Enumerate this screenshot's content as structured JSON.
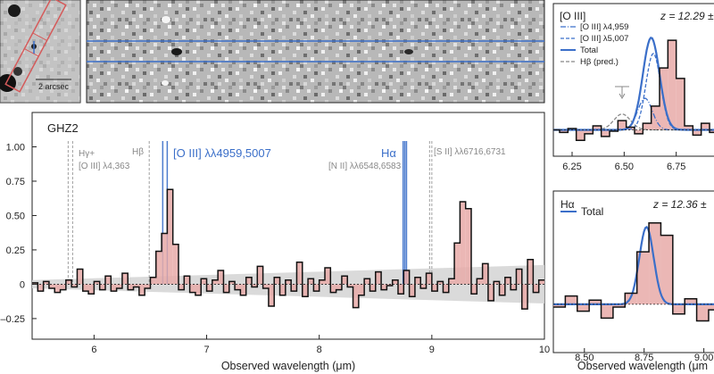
{
  "image_panels": {
    "scale_label": "2 arcsec"
  },
  "chart_data": [
    {
      "type": "line",
      "panel": "main-spectrum",
      "title": "GHZ2",
      "xlabel": "Observed wavelength (μm)",
      "ylabel": "",
      "xlim": [
        5.45,
        10.0
      ],
      "ylim": [
        -0.4,
        1.25
      ],
      "x_ticks": [
        6,
        7,
        8,
        9,
        10
      ],
      "y_ticks": [
        1.0,
        0.75,
        0.5,
        0.25,
        0,
        -0.25
      ],
      "y_tick_labels": [
        "1.00",
        "0.75",
        "0.50",
        "0.25",
        "0",
        "–0.25"
      ],
      "line_labels": [
        {
          "text": "Hγ+",
          "x": 5.8,
          "color": "#888888"
        },
        {
          "text": "[O III] λ4,363",
          "x": 5.8,
          "color": "#888888"
        },
        {
          "text": "Hβ",
          "x": 6.49,
          "color": "#888888"
        },
        {
          "text": "[O III] λλ4959,5007",
          "x": 6.65,
          "color": "#3b6fc9"
        },
        {
          "text": "Hα",
          "x": 8.77,
          "color": "#3b6fc9"
        },
        {
          "text": "[N II] λλ6548,6583",
          "x": 8.76,
          "color": "#888888"
        },
        {
          "text": "[S II] λλ6716,6731",
          "x": 8.98,
          "color": "#888888"
        }
      ],
      "marker_lines": [
        5.77,
        5.81,
        6.49,
        6.61,
        6.65,
        8.745,
        8.76,
        8.775,
        8.98,
        9.0
      ],
      "error_band": {
        "x": [
          5.45,
          10.0
        ],
        "half_width_start": 0.03,
        "half_width_end": 0.14
      },
      "steps": {
        "x0": 5.45,
        "dx": 0.05,
        "y": [
          0.01,
          -0.05,
          0.02,
          -0.03,
          -0.06,
          -0.04,
          0.03,
          -0.02,
          0.11,
          -0.05,
          -0.07,
          0.02,
          -0.04,
          0.06,
          -0.05,
          -0.03,
          0.08,
          -0.04,
          -0.02,
          -0.08,
          -0.03,
          0.05,
          0.24,
          0.37,
          0.69,
          0.29,
          -0.04,
          0.06,
          -0.06,
          -0.08,
          0.04,
          -0.05,
          0.03,
          0.1,
          -0.06,
          0.02,
          -0.04,
          -0.08,
          0.05,
          -0.02,
          0.13,
          -0.03,
          -0.16,
          0.05,
          -0.08,
          0.03,
          -0.05,
          0.16,
          -0.09,
          0.04,
          -0.05,
          0.03,
          0.12,
          -0.06,
          -0.04,
          0.06,
          -0.02,
          -0.17,
          -0.08,
          0.04,
          -0.05,
          0.09,
          -0.04,
          -0.01,
          0.03,
          -0.07,
          0.1,
          -0.09,
          0.05,
          -0.03,
          0.08,
          -0.05,
          0.02,
          -0.06,
          0.04,
          0.3,
          0.6,
          0.55,
          -0.07,
          0.04,
          0.15,
          -0.12,
          0.02,
          -0.08,
          0.05,
          -0.04,
          0.11,
          -0.18,
          0.18,
          -0.06,
          0.03,
          -0.22,
          -0.08,
          0.06
        ]
      }
    },
    {
      "type": "line",
      "panel": "oiii-zoom",
      "title": "[O III]",
      "annotation": "z = 12.29 ±",
      "xlim": [
        6.16,
        6.94
      ],
      "ylim": [
        -0.2,
        0.85
      ],
      "x_ticks": [
        6.25,
        6.5,
        6.75
      ],
      "x_tick_labels": [
        "6.25",
        "6.50",
        "6.75"
      ],
      "legend": [
        {
          "label": "[O III] λ4,959",
          "color": "#3b6fc9",
          "style": "dashdot"
        },
        {
          "label": "[O III] λ5,007",
          "color": "#3b6fc9",
          "style": "dashed"
        },
        {
          "label": "Total",
          "color": "#3b6fc9",
          "style": "solid"
        },
        {
          "label": "Hβ (pred.)",
          "color": "#888888",
          "style": "dashed"
        }
      ],
      "steps": {
        "x0": 6.15,
        "dx": 0.04,
        "y": [
          0.0,
          -0.02,
          0.01,
          -0.08,
          -0.03,
          0.03,
          -0.05,
          -0.01,
          0.07,
          0.02,
          -0.03,
          0.05,
          0.18,
          0.47,
          0.68,
          0.39,
          0.03,
          -0.04,
          0.05,
          -0.02,
          0.01
        ]
      },
      "model_total": {
        "center": 6.63,
        "sigma": 0.04,
        "amplitude": 0.7
      },
      "model_4959": {
        "center": 6.6,
        "sigma": 0.035,
        "amplitude": 0.24
      },
      "model_5007": {
        "center": 6.64,
        "sigma": 0.035,
        "amplitude": 0.58
      },
      "model_hbeta": {
        "center": 6.49,
        "sigma": 0.04,
        "amplitude": 0.12
      }
    },
    {
      "type": "line",
      "panel": "halpha-zoom",
      "title": "Hα",
      "annotation": "z = 12.36 ±",
      "xlabel": "Observed wavelength (μm",
      "xlim": [
        8.37,
        9.05
      ],
      "ylim": [
        -0.35,
        0.75
      ],
      "x_ticks": [
        8.5,
        8.75,
        9.0
      ],
      "x_tick_labels": [
        "8.50",
        "8.75",
        "9.00"
      ],
      "legend": [
        {
          "label": "Total",
          "color": "#3b6fc9",
          "style": "solid"
        }
      ],
      "steps": {
        "x0": 8.37,
        "dx": 0.05,
        "y": [
          -0.02,
          0.06,
          -0.05,
          0.03,
          -0.1,
          -0.02,
          0.08,
          0.38,
          0.59,
          0.5,
          -0.07,
          0.04,
          -0.12,
          -0.04,
          0.06
        ]
      },
      "model_total": {
        "center": 8.76,
        "sigma": 0.03,
        "amplitude": 0.56
      }
    }
  ]
}
